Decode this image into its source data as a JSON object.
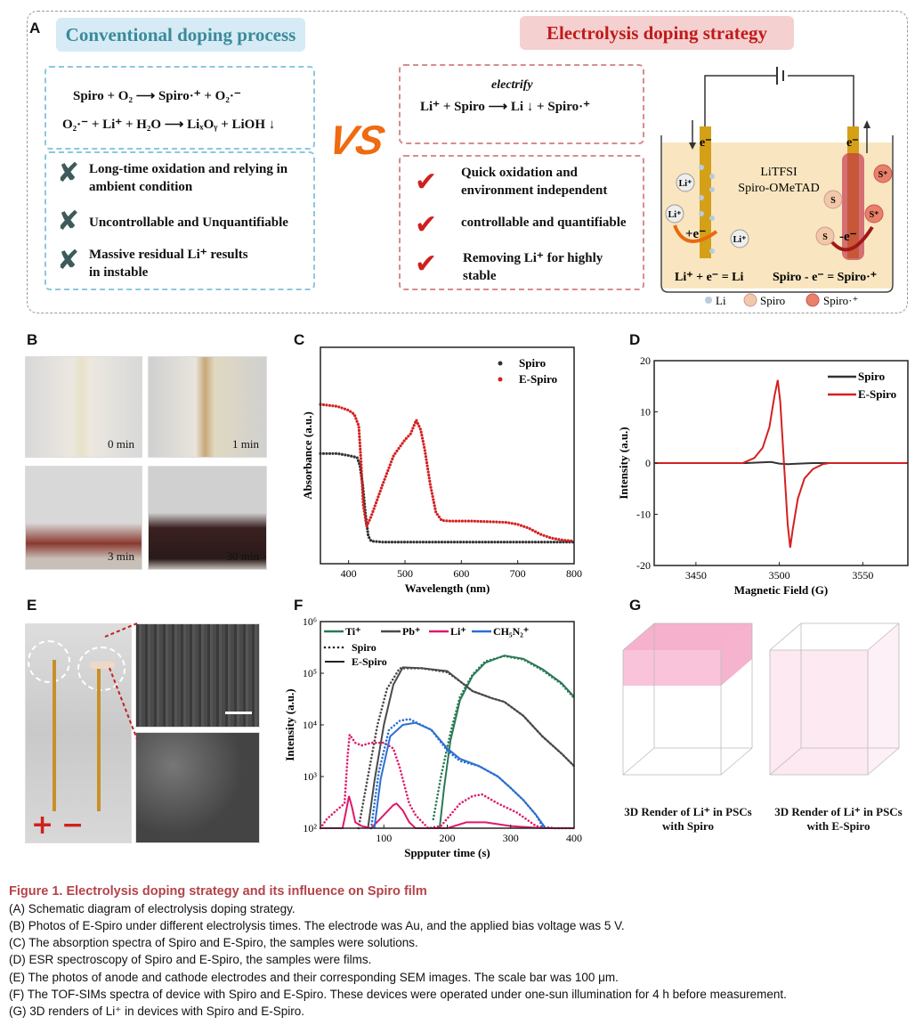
{
  "panels": {
    "A": "A",
    "B": "B",
    "C": "C",
    "D": "D",
    "E": "E",
    "F": "F",
    "G": "G"
  },
  "panelA": {
    "conventional_title": "Conventional doping process",
    "electrolysis_title": "Electrolysis doping strategy",
    "conv_eq1": "Spiro + O₂ ⟶ Spiro·⁺ + O₂·⁻",
    "conv_eq2": "O₂·⁻ + Li⁺ + H₂O ⟶ LiₓOᵧ + LiOH ↓",
    "vs": "VS",
    "elec_eq_label": "electrify",
    "elec_eq": "Li⁺ + Spiro ⟶ Li ↓ + Spiro·⁺",
    "cons": [
      "Long-time oxidation and relying in ambient condition",
      "Uncontrollable and Unquantifiable",
      "Massive residual Li⁺ results in instable"
    ],
    "pros": [
      "Quick oxidation and environment independent",
      "controllable and quantifiable",
      "Removing Li⁺ for highly stable"
    ],
    "cell": {
      "electron": "e⁻",
      "solution": "LiTFSI",
      "solute": "Spiro-OMeTAD",
      "li_ion": "Li⁺",
      "plus_e": "+e⁻",
      "minus_e": "-e⁻",
      "s": "S",
      "s_plus": "S⁺",
      "cathode_eq": "Li⁺ + e⁻ = Li",
      "anode_eq": "Spiro - e⁻ = Spiro·⁺",
      "legend": [
        "Li",
        "Spiro",
        "Spiro·⁺"
      ]
    }
  },
  "panelB": {
    "times": [
      "0 min",
      "1 min",
      "3 min",
      "30 min"
    ]
  },
  "panelE": {
    "plus": "+",
    "minus": "−"
  },
  "panelG": {
    "labels": [
      "3D Render of Li⁺ in PSCs with Spiro",
      "3D Render of Li⁺ in PSCs with E-Spiro"
    ]
  },
  "colors": {
    "red": "#d42020",
    "spiro": "#333333",
    "ti": "#2a7a55",
    "pb": "#4a4a4a",
    "li": "#e0186a",
    "ch": "#2d6fd0",
    "caption": "#b5424a"
  },
  "chart_data": [
    {
      "id": "C",
      "type": "scatter",
      "xlabel": "Wavelength (nm)",
      "ylabel": "Absorbance (a.u.)",
      "xlim": [
        350,
        800
      ],
      "ylim": [
        -0.1,
        1.0
      ],
      "xticks": [
        400,
        500,
        600,
        700,
        800
      ],
      "yticks_labeled": false,
      "legend_position": "top-right",
      "series": [
        {
          "name": "Spiro",
          "color": "#333333",
          "x": [
            350,
            380,
            400,
            415,
            420,
            425,
            430,
            435,
            440,
            460,
            500,
            600,
            700,
            800
          ],
          "y": [
            0.46,
            0.46,
            0.45,
            0.44,
            0.4,
            0.3,
            0.15,
            0.04,
            0.015,
            0.01,
            0.01,
            0.01,
            0.01,
            0.01
          ]
        },
        {
          "name": "E-Spiro",
          "color": "#d42020",
          "x": [
            350,
            380,
            400,
            410,
            418,
            422,
            426,
            432,
            440,
            460,
            480,
            500,
            510,
            520,
            528,
            535,
            545,
            555,
            565,
            580,
            620,
            680,
            700,
            720,
            740,
            760,
            780,
            800
          ],
          "y": [
            0.71,
            0.7,
            0.68,
            0.66,
            0.6,
            0.42,
            0.2,
            0.09,
            0.14,
            0.3,
            0.45,
            0.53,
            0.56,
            0.63,
            0.58,
            0.48,
            0.3,
            0.16,
            0.12,
            0.117,
            0.117,
            0.11,
            0.1,
            0.08,
            0.05,
            0.03,
            0.02,
            0.015
          ]
        }
      ]
    },
    {
      "id": "D",
      "type": "line",
      "xlabel": "Magnetic Field (G)",
      "ylabel": "Intensity (a.u.)",
      "xlim": [
        3425,
        3577
      ],
      "ylim": [
        -20,
        20
      ],
      "xticks": [
        3450,
        3500,
        3550
      ],
      "yticks": [
        -20,
        -10,
        0,
        10,
        20
      ],
      "legend_position": "top-right",
      "series": [
        {
          "name": "Spiro",
          "color": "#333333",
          "x": [
            3425,
            3480,
            3495,
            3500,
            3505,
            3520,
            3577
          ],
          "y": [
            0,
            0,
            0.2,
            -0.1,
            -0.2,
            0,
            0
          ]
        },
        {
          "name": "E-Spiro",
          "color": "#d42020",
          "x": [
            3425,
            3478,
            3485,
            3490,
            3494,
            3497,
            3499,
            3500.5,
            3502,
            3503.5,
            3505,
            3506.5,
            3508,
            3511,
            3515,
            3520,
            3526,
            3530,
            3577
          ],
          "y": [
            0,
            0,
            1,
            3,
            7,
            13,
            16.2,
            12,
            4,
            -4,
            -12,
            -16.5,
            -13,
            -7,
            -3,
            -1.2,
            -0.2,
            0,
            0
          ]
        }
      ]
    },
    {
      "id": "F",
      "type": "line",
      "xlabel": "Sppputer time (s)",
      "ylabel": "Intensity (a.u.)",
      "yscale": "log",
      "xlim": [
        0,
        400
      ],
      "ylim": [
        100,
        1000000
      ],
      "xticks": [
        100,
        200,
        300,
        400
      ],
      "yticks": [
        "10²",
        "10³",
        "10⁴",
        "10⁵",
        "10⁶"
      ],
      "legend_position": "top-left",
      "legend": [
        "Ti⁺",
        "Pb⁺",
        "Li⁺",
        "CH₅N₂⁺",
        "Spiro",
        "E-Spiro"
      ],
      "series": [
        {
          "name": "Ti⁺ E-Spiro",
          "color": "#2a7a55",
          "style": "solid",
          "x": [
            188,
            195,
            205,
            220,
            240,
            260,
            290,
            320,
            350,
            380,
            400
          ],
          "y": [
            100,
            600,
            5000,
            30000,
            90000,
            160000,
            220000,
            190000,
            120000,
            65000,
            35000
          ]
        },
        {
          "name": "Ti⁺ Spiro",
          "color": "#2a7a55",
          "style": "dotted",
          "x": [
            178,
            190,
            205,
            220,
            240,
            260,
            290,
            320,
            350,
            380,
            400
          ],
          "y": [
            150,
            1000,
            7000,
            35000,
            95000,
            170000,
            215000,
            185000,
            115000,
            62000,
            33000
          ]
        },
        {
          "name": "Pb⁺ E-Spiro",
          "color": "#4a4a4a",
          "style": "solid",
          "x": [
            75,
            85,
            100,
            115,
            130,
            160,
            200,
            220,
            240,
            270,
            290,
            320,
            350,
            380,
            400
          ],
          "y": [
            100,
            800,
            10000,
            60000,
            130000,
            125000,
            110000,
            70000,
            45000,
            33000,
            28000,
            15000,
            6000,
            2800,
            1600
          ]
        },
        {
          "name": "Pb⁺ Spiro",
          "color": "#4a4a4a",
          "style": "dotted",
          "x": [
            60,
            75,
            90,
            105,
            125,
            160,
            200,
            220,
            240,
            270,
            290,
            320,
            350,
            380,
            400
          ],
          "y": [
            100,
            1000,
            10000,
            50000,
            125000,
            125000,
            105000,
            70000,
            45000,
            33000,
            28000,
            15000,
            6000,
            2800,
            1600
          ]
        },
        {
          "name": "Li⁺ E-Spiro",
          "color": "#e0186a",
          "style": "solid",
          "x": [
            0,
            35,
            40,
            45,
            50,
            55,
            65,
            80,
            100,
            115,
            120,
            130,
            140,
            150,
            160,
            200,
            230,
            260,
            300,
            350,
            400
          ],
          "y": [
            100,
            100,
            200,
            420,
            250,
            130,
            110,
            100,
            180,
            280,
            300,
            220,
            130,
            100,
            100,
            100,
            130,
            130,
            110,
            100,
            100
          ]
        },
        {
          "name": "Li⁺ Spiro",
          "color": "#e0186a",
          "style": "dotted",
          "x": [
            0,
            10,
            25,
            38,
            43,
            46,
            55,
            65,
            80,
            100,
            115,
            125,
            140,
            150,
            170,
            190,
            220,
            240,
            255,
            280,
            310,
            340,
            370,
            400
          ],
          "y": [
            100,
            150,
            220,
            300,
            2500,
            6500,
            4500,
            4000,
            4500,
            4500,
            3500,
            1500,
            300,
            180,
            100,
            110,
            300,
            420,
            450,
            300,
            200,
            110,
            100,
            100
          ]
        },
        {
          "name": "CH₅N₂⁺ E-Spiro",
          "color": "#2d6fd0",
          "style": "solid",
          "x": [
            85,
            95,
            110,
            130,
            150,
            175,
            200,
            220,
            250,
            280,
            300,
            320,
            340,
            355
          ],
          "y": [
            100,
            900,
            6000,
            10000,
            11000,
            8000,
            3500,
            2200,
            1600,
            1000,
            600,
            350,
            180,
            100
          ]
        },
        {
          "name": "CH₅N₂⁺ Spiro",
          "color": "#2d6fd0",
          "style": "dotted",
          "x": [
            80,
            92,
            108,
            125,
            140,
            175,
            200,
            220,
            250,
            280,
            300,
            320,
            340,
            352
          ],
          "y": [
            100,
            1200,
            8000,
            12000,
            13000,
            8000,
            3200,
            2000,
            1600,
            1000,
            600,
            350,
            180,
            100
          ]
        }
      ]
    }
  ],
  "caption": {
    "title": "Figure 1.  Electrolysis doping strategy and its influence on Spiro film",
    "lines": [
      "(A) Schematic diagram of electrolysis doping strategy.",
      "(B) Photos of E-Spiro under different electrolysis times. The electrode was Au, and the applied bias voltage was 5 V.",
      "(C) The absorption spectra of Spiro and E-Spiro, the samples were solutions.",
      "(D) ESR spectroscopy of Spiro and E-Spiro, the samples were films.",
      "(E) The photos of anode and cathode electrodes and their corresponding SEM images. The scale bar was 100 μm.",
      "(F) The TOF-SIMs spectra of device with Spiro and E-Spiro. These devices were operated under one-sun illumination for 4 h before measurement.",
      "(G) 3D renders of Li⁺ in devices with Spiro and E-Spiro."
    ]
  }
}
